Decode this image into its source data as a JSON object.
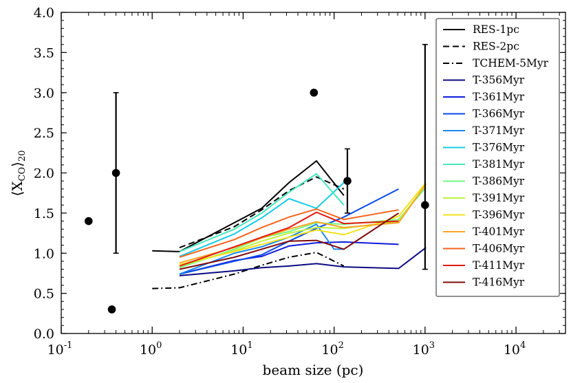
{
  "chart_data": {
    "type": "line",
    "xscale": "log",
    "xlim": [
      0.1,
      35000
    ],
    "ylim": [
      0.0,
      4.0
    ],
    "xlabel": "beam size (pc)",
    "ylabel_main": "⟨X",
    "ylabel_sub": "CO",
    "ylabel_close": "⟩",
    "ylabel_sub2": "20",
    "yticks": [
      {
        "v": 0.0,
        "label": "0.0"
      },
      {
        "v": 0.5,
        "label": "0.5"
      },
      {
        "v": 1.0,
        "label": "1.0"
      },
      {
        "v": 1.5,
        "label": "1.5"
      },
      {
        "v": 2.0,
        "label": "2.0"
      },
      {
        "v": 2.5,
        "label": "2.5"
      },
      {
        "v": 3.0,
        "label": "3.0"
      },
      {
        "v": 3.5,
        "label": "3.5"
      },
      {
        "v": 4.0,
        "label": "4.0"
      }
    ],
    "xticks": [
      {
        "v": 0.1,
        "base": "10",
        "exp": "-1"
      },
      {
        "v": 1,
        "base": "10",
        "exp": "0"
      },
      {
        "v": 10,
        "base": "10",
        "exp": "1"
      },
      {
        "v": 100,
        "base": "10",
        "exp": "2"
      },
      {
        "v": 1000,
        "base": "10",
        "exp": "3"
      },
      {
        "v": 10000,
        "base": "10",
        "exp": "4"
      }
    ],
    "series": [
      {
        "name": "RES-1pc",
        "color": "#000000",
        "dash": "",
        "x": [
          1,
          2,
          8,
          16,
          32,
          64,
          128
        ],
        "y": [
          1.03,
          1.02,
          1.38,
          1.56,
          1.88,
          2.15,
          1.72
        ]
      },
      {
        "name": "RES-2pc",
        "color": "#000000",
        "dash": "9,5",
        "x": [
          2,
          8,
          16,
          32,
          64,
          128
        ],
        "y": [
          1.07,
          1.33,
          1.54,
          1.78,
          1.95,
          1.8
        ]
      },
      {
        "name": "TCHEM-5Myr",
        "color": "#000000",
        "dash": "9,4,2,4",
        "x": [
          1,
          2,
          8,
          16,
          32,
          64,
          128
        ],
        "y": [
          0.56,
          0.57,
          0.74,
          0.85,
          0.95,
          1.01,
          0.84
        ]
      },
      {
        "name": "T-356Myr",
        "color": "#0a0a80",
        "dash": "",
        "x": [
          2,
          8,
          16,
          32,
          64,
          128,
          512,
          1024
        ],
        "y": [
          0.72,
          0.78,
          0.82,
          0.84,
          0.87,
          0.83,
          0.81,
          1.07
        ]
      },
      {
        "name": "T-361Myr",
        "color": "#0e1bdb",
        "dash": "",
        "x": [
          2,
          8,
          16,
          32,
          64,
          128,
          512
        ],
        "y": [
          0.74,
          0.91,
          0.96,
          1.09,
          1.13,
          1.14,
          1.11
        ]
      },
      {
        "name": "T-366Myr",
        "color": "#0a48e8",
        "dash": "",
        "x": [
          2,
          8,
          16,
          32,
          64,
          128,
          512
        ],
        "y": [
          0.74,
          0.9,
          0.98,
          1.15,
          1.31,
          1.45,
          1.8
        ]
      },
      {
        "name": "T-371Myr",
        "color": "#1a86f0",
        "dash": "",
        "x": [
          2,
          8,
          16,
          32,
          64,
          100,
          128
        ],
        "y": [
          0.74,
          1.0,
          1.08,
          1.2,
          1.36,
          1.05,
          1.05
        ]
      },
      {
        "name": "T-376Myr",
        "color": "#16cbe8",
        "dash": "",
        "x": [
          2,
          8,
          16,
          32,
          64,
          128
        ],
        "y": [
          0.96,
          1.24,
          1.44,
          1.68,
          1.56,
          1.88
        ]
      },
      {
        "name": "T-381Myr",
        "color": "#44e8bc",
        "dash": "",
        "x": [
          2,
          8,
          16,
          32,
          64,
          128
        ],
        "y": [
          1.02,
          1.3,
          1.5,
          1.76,
          1.99,
          1.6
        ]
      },
      {
        "name": "T-386Myr",
        "color": "#78f580",
        "dash": "",
        "x": [
          2,
          8,
          16,
          32,
          64,
          128,
          512,
          1024
        ],
        "y": [
          0.82,
          1.05,
          1.19,
          1.27,
          1.38,
          1.36,
          1.42,
          1.82
        ]
      },
      {
        "name": "T-391Myr",
        "color": "#bdf23b",
        "dash": "",
        "x": [
          2,
          8,
          16,
          32,
          64,
          128,
          512,
          1024
        ],
        "y": [
          0.84,
          1.03,
          1.15,
          1.25,
          1.32,
          1.31,
          1.4,
          1.86
        ]
      },
      {
        "name": "T-396Myr",
        "color": "#f2e21a",
        "dash": "",
        "x": [
          2,
          8,
          16,
          32,
          64,
          128,
          512,
          1024
        ],
        "y": [
          0.86,
          1.02,
          1.11,
          1.2,
          1.29,
          1.23,
          1.46,
          1.88
        ]
      },
      {
        "name": "T-401Myr",
        "color": "#faa424",
        "dash": "",
        "x": [
          2,
          8,
          16,
          32,
          64,
          128,
          512,
          1024
        ],
        "y": [
          0.88,
          1.07,
          1.19,
          1.3,
          1.39,
          1.32,
          1.38,
          1.86
        ]
      },
      {
        "name": "T-406Myr",
        "color": "#f5631a",
        "dash": "",
        "x": [
          2,
          8,
          16,
          32,
          64,
          128,
          512
        ],
        "y": [
          0.95,
          1.17,
          1.32,
          1.45,
          1.55,
          1.42,
          1.54
        ]
      },
      {
        "name": "T-411Myr",
        "color": "#e01a10",
        "dash": "",
        "x": [
          2,
          8,
          16,
          32,
          64,
          128,
          512
        ],
        "y": [
          0.84,
          1.08,
          1.2,
          1.32,
          1.51,
          1.37,
          1.4
        ]
      },
      {
        "name": "T-416Myr",
        "color": "#800a0a",
        "dash": "",
        "x": [
          2,
          8,
          16,
          32,
          64,
          128,
          512
        ],
        "y": [
          0.8,
          0.95,
          1.05,
          1.15,
          1.16,
          1.05,
          1.5
        ]
      }
    ],
    "points": [
      {
        "x": 0.2,
        "y": 1.4
      },
      {
        "x": 0.36,
        "y": 0.3
      },
      {
        "x": 0.4,
        "y": 2.0,
        "ylo": 1.0,
        "yhi": 3.0
      },
      {
        "x": 60,
        "y": 3.0
      },
      {
        "x": 140,
        "y": 1.9,
        "ylo": 1.5,
        "yhi": 2.3
      },
      {
        "x": 1000,
        "y": 1.6,
        "ylo": 0.8,
        "yhi": 3.6
      }
    ]
  }
}
